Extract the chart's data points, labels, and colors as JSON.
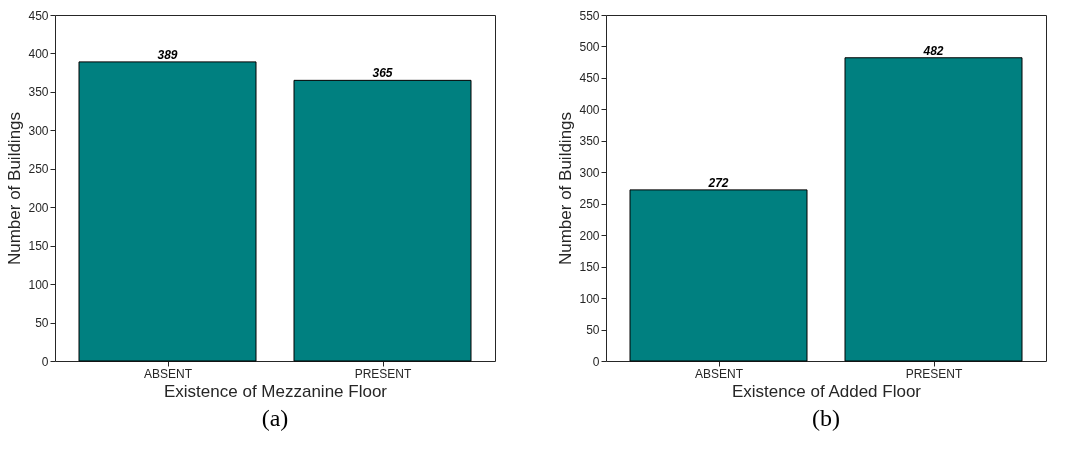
{
  "chart_data": [
    {
      "type": "bar",
      "categories": [
        "ABSENT",
        "PRESENT"
      ],
      "values": [
        389,
        365
      ],
      "color": "#008080",
      "xlabel": "Existence of Mezzanine Floor",
      "ylabel": "Number of Buildings",
      "ylim": [
        0,
        450
      ],
      "yticks": [
        0,
        50,
        100,
        150,
        200,
        250,
        300,
        350,
        400,
        450
      ],
      "data_labels": true,
      "grid": false,
      "annotations": [
        "(a)"
      ]
    },
    {
      "type": "bar",
      "categories": [
        "ABSENT",
        "PRESENT"
      ],
      "values": [
        272,
        482
      ],
      "color": "#008080",
      "xlabel": "Existence of Added Floor",
      "ylabel": "Number of Buildings",
      "ylim": [
        0,
        550
      ],
      "yticks": [
        0,
        50,
        100,
        150,
        200,
        250,
        300,
        350,
        400,
        450,
        500,
        550
      ],
      "data_labels": true,
      "grid": false,
      "annotations": [
        "(b)"
      ]
    }
  ]
}
